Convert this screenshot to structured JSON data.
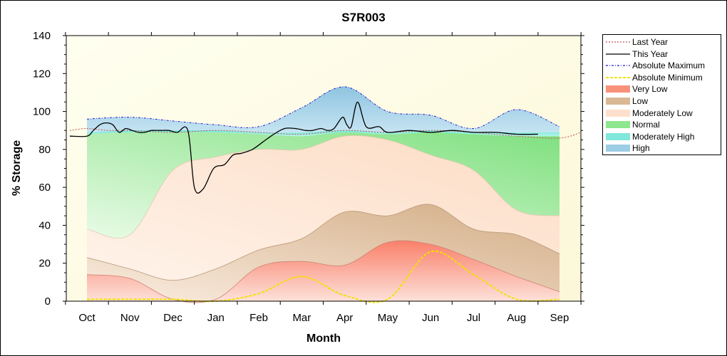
{
  "chart_data": {
    "type": "area",
    "title": "S7R003",
    "xlabel": "Month",
    "ylabel": "% Storage",
    "ylim": [
      0,
      140
    ],
    "yticks": [
      0,
      20,
      40,
      60,
      80,
      100,
      120,
      140
    ],
    "categories": [
      "Oct",
      "Nov",
      "Dec",
      "Jan",
      "Feb",
      "Mar",
      "Apr",
      "May",
      "Jun",
      "Jul",
      "Aug",
      "Sep"
    ],
    "grid": false,
    "legend_position": "right",
    "bands": {
      "abs_min": [
        1,
        1,
        1,
        0,
        4,
        13,
        3,
        1,
        26,
        14,
        1,
        1
      ],
      "very_low": [
        14,
        12,
        1,
        1,
        18,
        21,
        19,
        31,
        30,
        22,
        13,
        5
      ],
      "low": [
        23,
        17,
        11,
        17,
        27,
        33,
        47,
        45,
        51,
        38,
        35,
        25
      ],
      "mod_low": [
        38,
        35,
        69,
        76,
        80,
        80,
        87,
        85,
        77,
        69,
        48,
        45
      ],
      "normal": [
        88,
        89,
        89,
        89,
        88,
        87,
        89,
        88,
        89,
        88,
        87,
        87
      ],
      "mod_high": [
        89,
        90,
        90,
        90,
        89,
        89,
        90,
        89,
        90,
        89,
        89,
        89
      ],
      "high": [
        96,
        97,
        95,
        93,
        92,
        102,
        113,
        100,
        98,
        91,
        101,
        92
      ]
    },
    "series": [
      {
        "name": "Last Year",
        "x": [
          -0.4,
          0,
          0.5,
          1,
          2,
          3,
          4,
          5,
          6,
          7,
          8,
          9,
          10,
          11,
          11.5
        ],
        "values": [
          90,
          91,
          90,
          90,
          89,
          90,
          89,
          88,
          90,
          89,
          90,
          89,
          87,
          86,
          89
        ]
      },
      {
        "name": "This Year",
        "x": [
          -0.4,
          0,
          0.15,
          0.3,
          0.45,
          0.6,
          0.75,
          0.9,
          1.05,
          1.2,
          1.35,
          1.5,
          1.7,
          1.9,
          2.1,
          2.35,
          2.5,
          2.7,
          2.95,
          3.2,
          3.4,
          3.6,
          3.85,
          4.1,
          4.35,
          4.6,
          4.85,
          5.1,
          5.25,
          5.45,
          5.6,
          5.75,
          5.95,
          6.05,
          6.15,
          6.3,
          6.5,
          6.8,
          7.0,
          7.5,
          8.0,
          8.5,
          9.0,
          9.5,
          10.0,
          10.5
        ],
        "values": [
          87,
          87,
          90,
          93,
          94,
          93,
          89,
          91,
          90,
          89,
          89,
          90,
          90,
          90,
          89,
          90,
          60,
          59,
          70,
          72,
          77,
          78,
          80,
          84,
          88,
          91,
          91,
          90,
          90,
          91,
          90,
          91,
          97,
          93,
          92,
          105,
          92,
          92,
          89,
          90,
          89,
          90,
          89,
          89,
          88,
          88
        ]
      },
      {
        "name": "Absolute Maximum",
        "x": [
          0,
          1,
          2,
          3,
          4,
          5,
          6,
          7,
          8,
          9,
          10,
          11
        ],
        "values": [
          96,
          97,
          95,
          93,
          92,
          102,
          113,
          100,
          98,
          91,
          101,
          92
        ]
      },
      {
        "name": "Absolute Minimum",
        "x": [
          0,
          1,
          2,
          3,
          4,
          5,
          6,
          7,
          8,
          9,
          10,
          11
        ],
        "values": [
          1,
          1,
          1,
          0,
          4,
          13,
          3,
          1,
          26,
          14,
          1,
          1
        ]
      }
    ],
    "legend": [
      {
        "label": "Last Year",
        "kind": "line",
        "color": "#c0504d",
        "dash": "2,2"
      },
      {
        "label": "This Year",
        "kind": "line",
        "color": "#000000",
        "dash": ""
      },
      {
        "label": "Absolute Maximum",
        "kind": "line",
        "color": "#1f1fd0",
        "dash": "3,2,1,2"
      },
      {
        "label": "Absolute Minimum",
        "kind": "line",
        "color": "#f2e200",
        "dash": "4,2"
      },
      {
        "label": "Very Low",
        "kind": "fill",
        "color": "#f8917a"
      },
      {
        "label": "Low",
        "kind": "fill",
        "color": "#d9b894"
      },
      {
        "label": "Moderately Low",
        "kind": "fill",
        "color": "#fde0cc"
      },
      {
        "label": "Normal",
        "kind": "fill",
        "color": "#8ee68e"
      },
      {
        "label": "Moderately High",
        "kind": "fill",
        "color": "#7fe8da"
      },
      {
        "label": "High",
        "kind": "fill",
        "color": "#9ccde4"
      }
    ],
    "colors": {
      "plot_background": "#fdfbe4",
      "very_low": "#f8917a",
      "low": "#d9b894",
      "mod_low": "#fde0cc",
      "normal": "#8ee68e",
      "mod_high": "#7fe8da",
      "high": "#a6d2e8"
    }
  }
}
